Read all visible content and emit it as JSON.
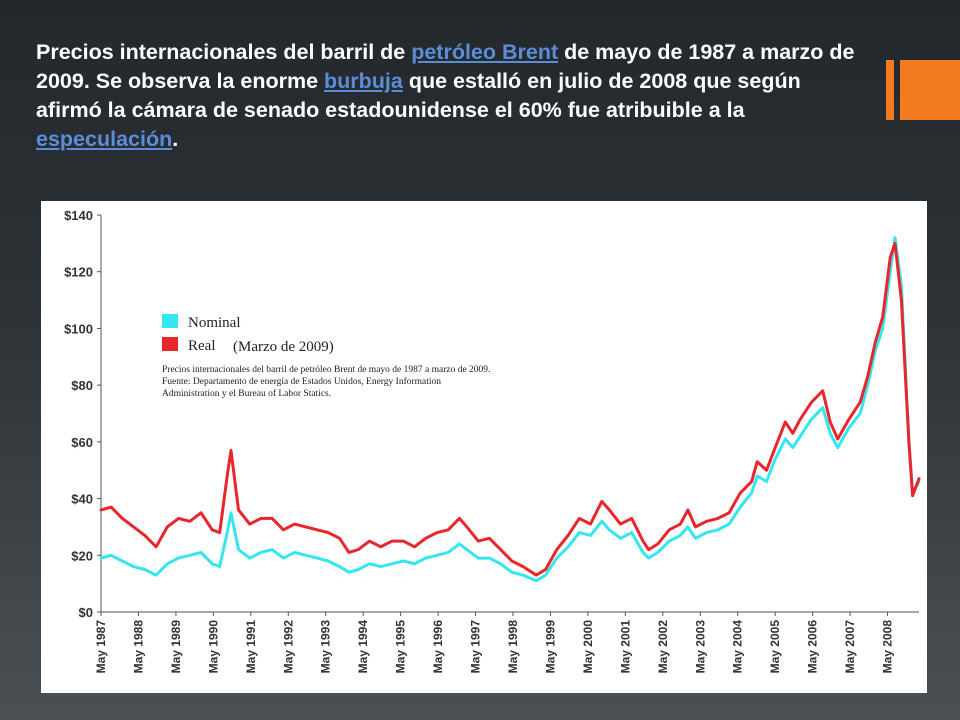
{
  "caption": {
    "part1": "Precios internacionales del barril de ",
    "link1": "petróleo Brent",
    "part2": " de mayo de 1987 a marzo de 2009. Se observa la enorme ",
    "link2": "burbuja",
    "part3": " que estalló en julio de 2008 que según afirmó la cámara de senado estadounidense el 60% fue atribuible a la ",
    "link3": "especulación",
    "part4": "."
  },
  "colors": {
    "accent": "#f47c20",
    "link": "#5b8dd6",
    "nominal": "#33e6f0",
    "real": "#e8262b"
  },
  "chart_data": {
    "type": "line",
    "legend": {
      "nominal": "Nominal",
      "real": "Real",
      "real_note": "(Marzo de 2009)",
      "placement": "top-left"
    },
    "note_lines": [
      "Precios internacionales del barril de petróleo Brent de mayo de 1987 a marzo de 2009.",
      "Fuente: Departamento de energía de Estados Unidos, Energy Information",
      "Administration y el Bureau of Labor Statics."
    ],
    "ylim": [
      0,
      140
    ],
    "yticks": [
      0,
      20,
      40,
      60,
      80,
      100,
      120,
      140
    ],
    "ytick_labels": [
      "$0",
      "$20",
      "$40",
      "$60",
      "$80",
      "$100",
      "$120",
      "$140"
    ],
    "xlim": [
      1987.33,
      2009.17
    ],
    "xtick_labels": [
      "May 1987",
      "May 1988",
      "May 1989",
      "May 1990",
      "May 1991",
      "May 1992",
      "May 1993",
      "May 1994",
      "May 1995",
      "May 1996",
      "May 1997",
      "May 1998",
      "May 1999",
      "May 2000",
      "May 2001",
      "May 2002",
      "May 2003",
      "May 2004",
      "May 2005",
      "May 2006",
      "May 2007",
      "May 2008"
    ],
    "grid": false,
    "series": [
      {
        "name": "Nominal",
        "x": [
          1987.33,
          1987.6,
          1987.9,
          1988.2,
          1988.5,
          1988.8,
          1989.1,
          1989.4,
          1989.7,
          1990.0,
          1990.3,
          1990.5,
          1990.7,
          1990.8,
          1991.0,
          1991.3,
          1991.6,
          1991.9,
          1992.2,
          1992.5,
          1992.8,
          1993.1,
          1993.4,
          1993.7,
          1993.95,
          1994.2,
          1994.5,
          1994.8,
          1995.1,
          1995.4,
          1995.7,
          1996.0,
          1996.3,
          1996.6,
          1996.9,
          1997.1,
          1997.4,
          1997.7,
          1998.0,
          1998.3,
          1998.6,
          1998.95,
          1999.2,
          1999.5,
          1999.8,
          2000.1,
          2000.4,
          2000.7,
          2000.9,
          2001.2,
          2001.5,
          2001.8,
          2001.95,
          2002.2,
          2002.5,
          2002.8,
          2003.0,
          2003.2,
          2003.5,
          2003.8,
          2004.1,
          2004.4,
          2004.7,
          2004.85,
          2005.1,
          2005.3,
          2005.6,
          2005.8,
          2006.0,
          2006.3,
          2006.6,
          2006.8,
          2007.0,
          2007.3,
          2007.6,
          2007.8,
          2008.0,
          2008.2,
          2008.4,
          2008.53,
          2008.7,
          2008.9,
          2009.0,
          2009.17
        ],
        "y": [
          19,
          20,
          18,
          16,
          15,
          13,
          17,
          19,
          20,
          21,
          17,
          16,
          28,
          35,
          22,
          19,
          21,
          22,
          19,
          21,
          20,
          19,
          18,
          16,
          14,
          15,
          17,
          16,
          17,
          18,
          17,
          19,
          20,
          21,
          24,
          22,
          19,
          19,
          17,
          14,
          13,
          11,
          13,
          19,
          23,
          28,
          27,
          32,
          29,
          26,
          28,
          21,
          19,
          21,
          25,
          27,
          30,
          26,
          28,
          29,
          31,
          37,
          42,
          48,
          46,
          53,
          61,
          58,
          62,
          68,
          72,
          63,
          58,
          65,
          70,
          80,
          92,
          100,
          120,
          132,
          115,
          60,
          42,
          46
        ]
      },
      {
        "name": "Real",
        "x": [
          1987.33,
          1987.6,
          1987.9,
          1988.2,
          1988.5,
          1988.8,
          1989.1,
          1989.4,
          1989.7,
          1990.0,
          1990.3,
          1990.5,
          1990.7,
          1990.8,
          1991.0,
          1991.3,
          1991.6,
          1991.9,
          1992.2,
          1992.5,
          1992.8,
          1993.1,
          1993.4,
          1993.7,
          1993.95,
          1994.2,
          1994.5,
          1994.8,
          1995.1,
          1995.4,
          1995.7,
          1996.0,
          1996.3,
          1996.6,
          1996.9,
          1997.1,
          1997.4,
          1997.7,
          1998.0,
          1998.3,
          1998.6,
          1998.95,
          1999.2,
          1999.5,
          1999.8,
          2000.1,
          2000.4,
          2000.7,
          2000.9,
          2001.2,
          2001.5,
          2001.8,
          2001.95,
          2002.2,
          2002.5,
          2002.8,
          2003.0,
          2003.2,
          2003.5,
          2003.8,
          2004.1,
          2004.4,
          2004.7,
          2004.85,
          2005.1,
          2005.3,
          2005.6,
          2005.8,
          2006.0,
          2006.3,
          2006.6,
          2006.8,
          2007.0,
          2007.3,
          2007.6,
          2007.8,
          2008.0,
          2008.2,
          2008.4,
          2008.53,
          2008.7,
          2008.9,
          2009.0,
          2009.17
        ],
        "y": [
          36,
          37,
          33,
          30,
          27,
          23,
          30,
          33,
          32,
          35,
          29,
          28,
          48,
          57,
          36,
          31,
          33,
          33,
          29,
          31,
          30,
          29,
          28,
          26,
          21,
          22,
          25,
          23,
          25,
          25,
          23,
          26,
          28,
          29,
          33,
          30,
          25,
          26,
          22,
          18,
          16,
          13,
          15,
          22,
          27,
          33,
          31,
          39,
          36,
          31,
          33,
          25,
          22,
          24,
          29,
          31,
          36,
          30,
          32,
          33,
          35,
          42,
          46,
          53,
          50,
          57,
          67,
          63,
          68,
          74,
          78,
          67,
          61,
          68,
          74,
          83,
          95,
          104,
          125,
          130,
          110,
          60,
          41,
          47
        ]
      }
    ]
  }
}
